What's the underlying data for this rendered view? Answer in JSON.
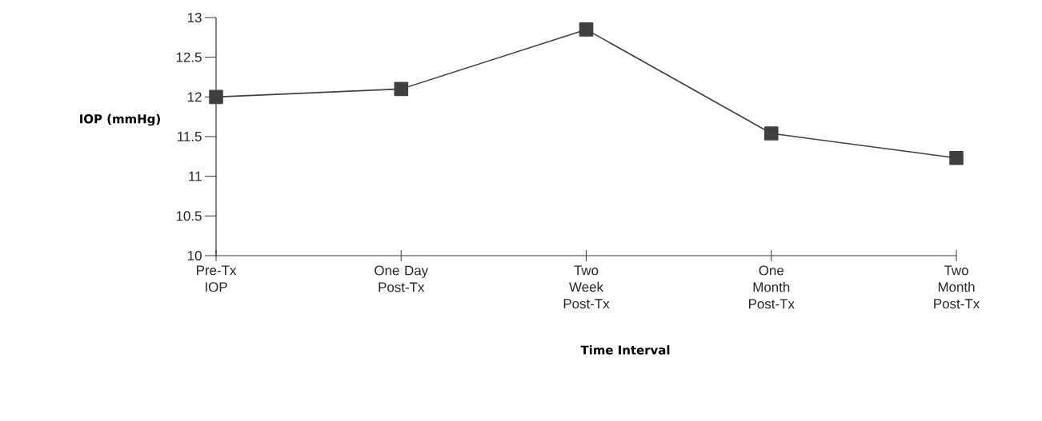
{
  "chart_data": {
    "type": "line",
    "xlabel": "Time Interval",
    "ylabel": "IOP (mmHg)",
    "categories": [
      "Pre-Tx IOP",
      "One Day Post-Tx",
      "Two Week Post-Tx",
      "One Month Post-Tx",
      "Two Month Post-Tx"
    ],
    "values": [
      12.0,
      12.1,
      12.85,
      11.54,
      11.23
    ],
    "color": "#404040",
    "marker": "square",
    "line_style": "solid",
    "ylim": [
      10,
      13
    ],
    "yticks": [
      10,
      10.5,
      11,
      11.5,
      12,
      12.5,
      13
    ],
    "grid": false
  }
}
